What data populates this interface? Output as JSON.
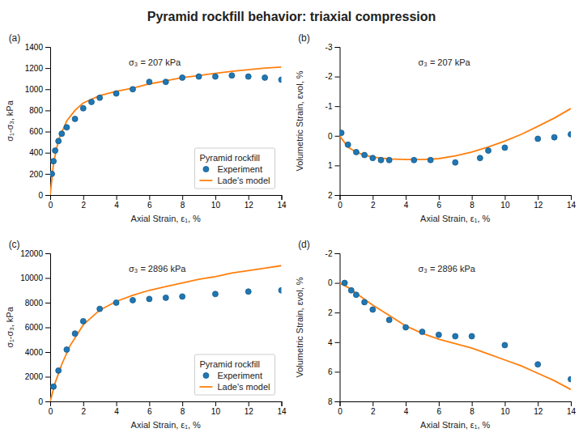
{
  "title": "Pyramid rockfill behavior:  triaxial compression",
  "chart_data": [
    {
      "type": "line",
      "title": "(a)",
      "annotations": [
        "σ₃ = 207 kPa"
      ],
      "x_label": "Axial Strain, ε₁, %",
      "y_label": "σ₁-σ₃, kPa",
      "xlim": [
        0,
        14
      ],
      "ylim": [
        0,
        1400
      ],
      "xticks": [
        0,
        2,
        4,
        6,
        8,
        10,
        12,
        14
      ],
      "yticks": [
        0,
        200,
        400,
        600,
        800,
        1000,
        1200,
        1400
      ],
      "grid": false,
      "legend": "lower right",
      "legend_title": "Pyramid rockfill",
      "series": [
        {
          "name": "Experiment",
          "type": "scatter",
          "marker": "circle",
          "x": [
            0.1,
            0.2,
            0.3,
            0.5,
            0.7,
            1.0,
            1.5,
            2.0,
            2.5,
            3.0,
            4.0,
            5.0,
            6.0,
            7.0,
            8.0,
            9.0,
            10.0,
            11.0,
            12.0,
            13.0,
            14.0
          ],
          "values": [
            200,
            320,
            420,
            510,
            580,
            640,
            720,
            820,
            880,
            920,
            960,
            1000,
            1070,
            1070,
            1110,
            1120,
            1120,
            1130,
            1120,
            1110,
            1090
          ]
        },
        {
          "name": "Lade's model",
          "type": "line",
          "line_style": "solid",
          "x": [
            0,
            0.2,
            0.5,
            1.0,
            1.5,
            2.0,
            3.0,
            4.0,
            5.0,
            6.0,
            7.0,
            8.0,
            9.0,
            10.0,
            11.0,
            12.0,
            13.0,
            14.0
          ],
          "values": [
            0,
            300,
            520,
            700,
            800,
            870,
            940,
            980,
            1010,
            1050,
            1080,
            1110,
            1130,
            1150,
            1170,
            1185,
            1200,
            1210
          ]
        }
      ]
    },
    {
      "type": "line",
      "title": "(b)",
      "annotations": [
        "σ₃ = 207 kPa"
      ],
      "x_label": "Axial Strain, ε₁, %",
      "y_label": "Volumetric Strain, εvol, %",
      "xlim": [
        0,
        14
      ],
      "ylim": [
        2,
        -3
      ],
      "xticks": [
        0,
        2,
        4,
        6,
        8,
        10,
        12,
        14
      ],
      "yticks": [
        2,
        1,
        0,
        -1,
        -2,
        -3
      ],
      "grid": false,
      "series": [
        {
          "type": "scatter",
          "marker": "circle",
          "x": [
            0.1,
            0.5,
            1.0,
            1.5,
            2.0,
            2.5,
            3.0,
            4.5,
            5.5,
            7.0,
            8.5,
            9.0,
            10.0,
            12.0,
            13.0,
            14.0
          ],
          "values": [
            -0.1,
            0.3,
            0.55,
            0.65,
            0.75,
            0.82,
            0.82,
            0.82,
            0.82,
            0.9,
            0.75,
            0.5,
            0.4,
            0.1,
            0.05,
            -0.05
          ]
        },
        {
          "type": "line",
          "line_style": "solid",
          "x": [
            0,
            0.5,
            1.0,
            1.5,
            2.0,
            3.0,
            4.0,
            5.0,
            6.0,
            7.0,
            8.0,
            9.0,
            10.0,
            11.0,
            12.0,
            13.0,
            14.0
          ],
          "values": [
            0,
            0.38,
            0.55,
            0.65,
            0.72,
            0.78,
            0.8,
            0.8,
            0.77,
            0.68,
            0.55,
            0.38,
            0.18,
            -0.05,
            -0.32,
            -0.6,
            -0.92
          ]
        }
      ]
    },
    {
      "type": "line",
      "title": "(c)",
      "annotations": [
        "σ₃ = 2896 kPa"
      ],
      "x_label": "Axial Strain, ε₁, %",
      "y_label": "σ₁-σ₃, kPa",
      "xlim": [
        0,
        14
      ],
      "ylim": [
        0,
        12000
      ],
      "xticks": [
        0,
        2,
        4,
        6,
        8,
        10,
        12,
        14
      ],
      "yticks": [
        0,
        2000,
        4000,
        6000,
        8000,
        10000,
        12000
      ],
      "grid": false,
      "legend": "lower right",
      "legend_title": "Pyramid rockfill",
      "series": [
        {
          "name": "Experiment",
          "type": "scatter",
          "marker": "circle",
          "x": [
            0.2,
            0.5,
            1.0,
            1.5,
            2.0,
            3.0,
            4.0,
            5.0,
            6.0,
            7.0,
            8.0,
            10.0,
            12.0,
            14.0
          ],
          "values": [
            1200,
            2500,
            4200,
            5500,
            6500,
            7500,
            8000,
            8200,
            8300,
            8400,
            8500,
            8700,
            8900,
            9000
          ]
        },
        {
          "name": "Lade's model",
          "type": "line",
          "line_style": "solid",
          "x": [
            0,
            0.3,
            0.7,
            1.2,
            2.0,
            3.0,
            4.0,
            5.0,
            6.0,
            7.0,
            8.0,
            9.0,
            10.0,
            11.0,
            12.0,
            13.0,
            14.0
          ],
          "values": [
            0,
            1500,
            3000,
            4500,
            6200,
            7400,
            8100,
            8600,
            9000,
            9300,
            9600,
            9900,
            10100,
            10400,
            10600,
            10800,
            11000
          ]
        }
      ]
    },
    {
      "type": "line",
      "title": "(d)",
      "annotations": [
        "σ₃ = 2896 kPa"
      ],
      "x_label": "Axial Strain, ε₁, %",
      "y_label": "Volumetric Strain, εvol, %",
      "xlim": [
        0,
        14
      ],
      "ylim": [
        8,
        -2
      ],
      "xticks": [
        0,
        2,
        4,
        6,
        8,
        10,
        12,
        14
      ],
      "yticks": [
        8,
        6,
        4,
        2,
        0,
        -2
      ],
      "grid": false,
      "series": [
        {
          "type": "scatter",
          "marker": "circle",
          "x": [
            0.3,
            0.7,
            1.0,
            1.5,
            2.0,
            3.0,
            4.0,
            5.0,
            6.0,
            7.0,
            8.0,
            10.0,
            12.0,
            14.0
          ],
          "values": [
            0.0,
            0.5,
            0.8,
            1.3,
            1.8,
            2.5,
            3.0,
            3.3,
            3.5,
            3.6,
            3.6,
            4.2,
            5.5,
            6.5
          ]
        },
        {
          "type": "line",
          "line_style": "solid",
          "x": [
            0,
            0.5,
            1.0,
            2.0,
            3.0,
            4.0,
            5.0,
            6.0,
            7.0,
            8.0,
            9.0,
            10.0,
            11.0,
            12.0,
            13.0,
            14.0
          ],
          "values": [
            0,
            0.3,
            0.7,
            1.5,
            2.2,
            2.9,
            3.4,
            3.8,
            4.1,
            4.4,
            4.8,
            5.2,
            5.6,
            6.1,
            6.6,
            7.2
          ]
        }
      ]
    }
  ]
}
